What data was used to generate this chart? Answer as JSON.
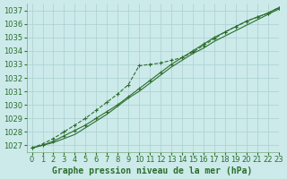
{
  "title": "Graphe pression niveau de la mer (hPa)",
  "bg_color": "#cceaea",
  "grid_color": "#aacfcf",
  "line_color": "#2d6e2d",
  "spine_color": "#7aaa7a",
  "xlim": [
    -0.5,
    23
  ],
  "ylim": [
    1026.5,
    1037.5
  ],
  "yticks": [
    1027,
    1028,
    1029,
    1030,
    1031,
    1032,
    1033,
    1034,
    1035,
    1036,
    1037
  ],
  "xticks": [
    0,
    1,
    2,
    3,
    4,
    5,
    6,
    7,
    8,
    9,
    10,
    11,
    12,
    13,
    14,
    15,
    16,
    17,
    18,
    19,
    20,
    21,
    22,
    23
  ],
  "series_upper_x": [
    0,
    1,
    2,
    3,
    4,
    5,
    6,
    7,
    8,
    9,
    10,
    11,
    12,
    13,
    14,
    15,
    16,
    17,
    18,
    19,
    20,
    21,
    22,
    23
  ],
  "series_upper_y": [
    1026.8,
    1027.1,
    1027.5,
    1028.0,
    1028.5,
    1029.0,
    1029.6,
    1030.2,
    1030.8,
    1031.5,
    1032.9,
    1033.0,
    1033.1,
    1033.3,
    1033.5,
    1033.9,
    1034.4,
    1034.9,
    1035.4,
    1035.8,
    1036.2,
    1036.5,
    1036.8,
    1037.2
  ],
  "series_lower_x": [
    0,
    1,
    2,
    3,
    4,
    5,
    6,
    7,
    8,
    9,
    10,
    11,
    12,
    13,
    14,
    15,
    16,
    17,
    18,
    19,
    20,
    21,
    22,
    23
  ],
  "series_lower_y": [
    1026.8,
    1027.0,
    1027.3,
    1027.7,
    1028.1,
    1028.5,
    1029.0,
    1029.5,
    1030.0,
    1030.6,
    1031.2,
    1031.8,
    1032.4,
    1033.0,
    1033.5,
    1034.0,
    1034.5,
    1035.0,
    1035.4,
    1035.8,
    1036.2,
    1036.5,
    1036.8,
    1037.2
  ],
  "series_mid_x": [
    0,
    1,
    2,
    3,
    4,
    5,
    6,
    7,
    8,
    9,
    10,
    11,
    12,
    13,
    14,
    15,
    16,
    17,
    18,
    19,
    20,
    21,
    22,
    23
  ],
  "series_mid_y": [
    1026.8,
    1027.0,
    1027.2,
    1027.5,
    1027.8,
    1028.3,
    1028.8,
    1029.3,
    1029.9,
    1030.5,
    1031.0,
    1031.6,
    1032.2,
    1032.8,
    1033.3,
    1033.8,
    1034.2,
    1034.7,
    1035.1,
    1035.5,
    1035.9,
    1036.3,
    1036.7,
    1037.1
  ],
  "tick_fontsize": 6,
  "xlabel_fontsize": 7
}
